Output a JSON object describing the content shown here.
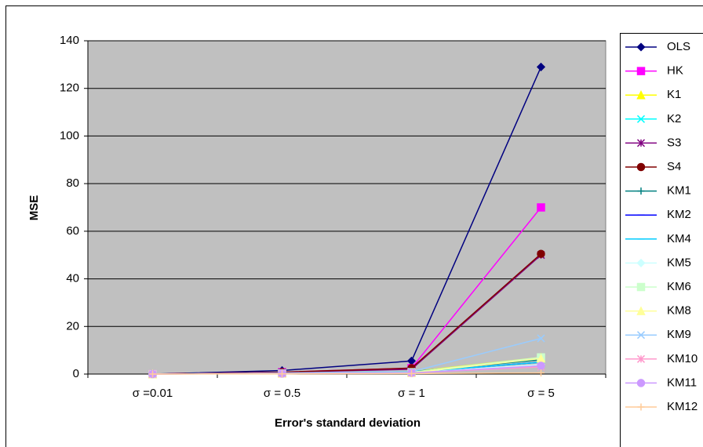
{
  "chart_data": {
    "type": "line",
    "x_label": "Error's standard deviation",
    "y_label": "MSE",
    "categories": [
      "σ =0.01",
      "σ = 0.5",
      "σ = 1",
      "σ = 5"
    ],
    "ylim": [
      0,
      140
    ],
    "yticks": [
      0,
      20,
      40,
      60,
      80,
      100,
      120,
      140
    ],
    "grid": true,
    "legend": "right",
    "series": [
      {
        "name": "OLS",
        "color": "#000080",
        "marker": "diamond",
        "values": [
          0,
          1.5,
          5.5,
          129
        ]
      },
      {
        "name": "HK",
        "color": "#ff00ff",
        "marker": "square",
        "values": [
          0,
          0.8,
          2.5,
          70
        ]
      },
      {
        "name": "K1",
        "color": "#ffff00",
        "marker": "triangle",
        "values": [
          0,
          0.5,
          1,
          7
        ]
      },
      {
        "name": "K2",
        "color": "#00ffff",
        "marker": "x",
        "values": [
          0,
          0.5,
          1,
          6
        ]
      },
      {
        "name": "S3",
        "color": "#800080",
        "marker": "star",
        "values": [
          0,
          0.8,
          2,
          50
        ]
      },
      {
        "name": "S4",
        "color": "#800000",
        "marker": "circle",
        "values": [
          0,
          0.8,
          2.5,
          50.5
        ]
      },
      {
        "name": "KM1",
        "color": "#008080",
        "marker": "plus",
        "values": [
          0,
          0.3,
          1,
          6
        ]
      },
      {
        "name": "KM2",
        "color": "#0000ff",
        "marker": "dash",
        "values": [
          0,
          0.3,
          0.8,
          5
        ]
      },
      {
        "name": "KM4",
        "color": "#00ccff",
        "marker": "dash",
        "values": [
          0,
          0.3,
          0.8,
          5
        ]
      },
      {
        "name": "KM5",
        "color": "#ccffff",
        "marker": "diamond",
        "values": [
          0,
          0.3,
          0.5,
          4
        ]
      },
      {
        "name": "KM6",
        "color": "#ccffcc",
        "marker": "square",
        "values": [
          0,
          0.3,
          0.8,
          7
        ]
      },
      {
        "name": "KM8",
        "color": "#ffff99",
        "marker": "triangle",
        "values": [
          0,
          0.2,
          0.5,
          6.5
        ]
      },
      {
        "name": "KM9",
        "color": "#99ccff",
        "marker": "x",
        "values": [
          0,
          0.5,
          1,
          15
        ]
      },
      {
        "name": "KM10",
        "color": "#ff99cc",
        "marker": "star",
        "values": [
          0,
          0.2,
          0.5,
          3
        ]
      },
      {
        "name": "KM11",
        "color": "#cc99ff",
        "marker": "circle",
        "values": [
          0,
          0.2,
          0.5,
          3.5
        ]
      },
      {
        "name": "KM12",
        "color": "#ffcc99",
        "marker": "plus",
        "values": [
          0,
          0.1,
          0.2,
          0.5
        ]
      }
    ]
  }
}
